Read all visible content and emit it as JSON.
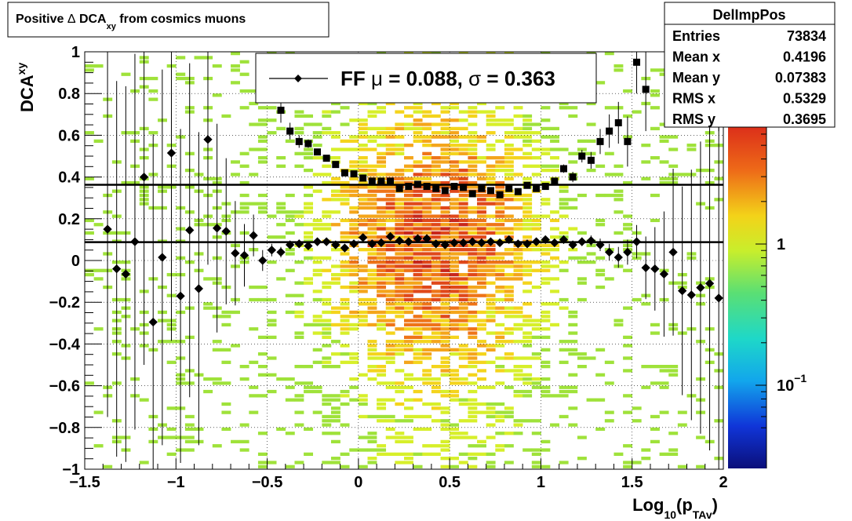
{
  "chart_data": {
    "type": "scatter",
    "title_parts": [
      "Positive ",
      "Δ",
      " DCA",
      "xy",
      " from cosmics muons"
    ],
    "xlabel_parts": [
      "Log",
      "10",
      "(p",
      "TAv",
      ")"
    ],
    "ylabel_parts": [
      "DCA",
      "xy"
    ],
    "xlim": [
      -1.5,
      2.0
    ],
    "ylim": [
      -1.0,
      1.0
    ],
    "x_ticks": [
      -1.5,
      -1,
      -0.5,
      0,
      0.5,
      1,
      1.5,
      2
    ],
    "x_tick_labels": [
      "−1.5",
      "−1",
      "−0.5",
      "0",
      "0.5",
      "1",
      "1.5",
      "2"
    ],
    "y_ticks": [
      -1,
      -0.8,
      -0.6,
      -0.4,
      -0.2,
      0,
      0.2,
      0.4,
      0.6,
      0.8,
      1
    ],
    "y_tick_labels": [
      "−1",
      "−0.8",
      "−0.6",
      "−0.4",
      "−0.2",
      "0",
      "0.2",
      "0.4",
      "0.6",
      "0.8",
      "1"
    ],
    "grid": true,
    "legend": {
      "position": "top",
      "label_prefix": "FF ",
      "mu_symbol": "μ",
      "mu_text": " =  0.088, ",
      "sigma_symbol": "σ",
      "sigma_text": " =   0.363"
    },
    "fit_lines": [
      {
        "y": 0.088
      },
      {
        "y": 0.363
      }
    ],
    "stats": {
      "title": "DelImpPos",
      "rows": [
        {
          "label": "Entries",
          "value": "73834"
        },
        {
          "label": "Mean x",
          "value": "0.4196"
        },
        {
          "label": "Mean y",
          "value": "0.07383"
        },
        {
          "label": "RMS x",
          "value": "0.5329"
        },
        {
          "label": "RMS y",
          "value": "0.3695"
        }
      ]
    },
    "colorbar": {
      "scale": "log",
      "labels": [
        {
          "base": "1",
          "exp": "",
          "value": 1
        },
        {
          "base": "10",
          "exp": "−1",
          "value": 0.1
        }
      ]
    },
    "mean_series": {
      "marker": "diamond",
      "x": [
        -1.375,
        -1.325,
        -1.275,
        -1.225,
        -1.175,
        -1.125,
        -1.075,
        -1.025,
        -0.975,
        -0.925,
        -0.875,
        -0.825,
        -0.775,
        -0.725,
        -0.675,
        -0.625,
        -0.575,
        -0.525,
        -0.475,
        -0.425,
        -0.375,
        -0.325,
        -0.275,
        -0.225,
        -0.175,
        -0.125,
        -0.075,
        -0.025,
        0.025,
        0.075,
        0.125,
        0.175,
        0.225,
        0.275,
        0.325,
        0.375,
        0.425,
        0.475,
        0.525,
        0.575,
        0.625,
        0.675,
        0.725,
        0.775,
        0.825,
        0.875,
        0.925,
        0.975,
        1.025,
        1.075,
        1.125,
        1.175,
        1.225,
        1.275,
        1.325,
        1.375,
        1.425,
        1.475,
        1.525,
        1.575,
        1.625,
        1.675,
        1.725,
        1.775,
        1.825,
        1.875,
        1.925,
        1.975
      ],
      "y": [
        0.15,
        -0.04,
        -0.065,
        0.09,
        0.4,
        -0.295,
        0.015,
        0.515,
        -0.17,
        0.145,
        -0.135,
        0.58,
        0.155,
        0.14,
        0.035,
        0.025,
        0.12,
        0.0,
        0.05,
        0.04,
        0.075,
        0.08,
        0.07,
        0.09,
        0.09,
        0.075,
        0.06,
        0.08,
        0.11,
        0.08,
        0.085,
        0.115,
        0.095,
        0.09,
        0.105,
        0.105,
        0.08,
        0.075,
        0.085,
        0.085,
        0.09,
        0.085,
        0.09,
        0.085,
        0.1,
        0.08,
        0.08,
        0.09,
        0.1,
        0.085,
        0.1,
        0.075,
        0.09,
        0.095,
        0.075,
        0.04,
        0.015,
        0.04,
        0.09,
        -0.035,
        -0.04,
        -0.065,
        0.04,
        -0.145,
        -0.165,
        -0.13,
        -0.11,
        -0.18
      ],
      "err": [
        0.9,
        0.9,
        0.9,
        0.9,
        0.9,
        0.9,
        0.9,
        0.9,
        0.8,
        0.8,
        0.75,
        0.6,
        0.5,
        0.35,
        0.25,
        0.15,
        0.1,
        0.05,
        0.03,
        0.025,
        0.02,
        0.02,
        0.015,
        0.015,
        0.015,
        0.015,
        0.015,
        0.015,
        0.015,
        0.015,
        0.015,
        0.015,
        0.015,
        0.015,
        0.015,
        0.015,
        0.015,
        0.015,
        0.015,
        0.015,
        0.015,
        0.015,
        0.015,
        0.015,
        0.015,
        0.015,
        0.015,
        0.015,
        0.015,
        0.015,
        0.02,
        0.02,
        0.02,
        0.025,
        0.03,
        0.04,
        0.05,
        0.06,
        0.08,
        0.15,
        0.2,
        0.3,
        0.4,
        0.5,
        0.6,
        0.7,
        0.8,
        0.9
      ]
    },
    "rms_series": {
      "marker": "square",
      "x": [
        -0.425,
        -0.375,
        -0.325,
        -0.275,
        -0.225,
        -0.175,
        -0.125,
        -0.075,
        -0.025,
        0.025,
        0.075,
        0.125,
        0.175,
        0.225,
        0.275,
        0.325,
        0.375,
        0.425,
        0.475,
        0.525,
        0.575,
        0.625,
        0.675,
        0.725,
        0.775,
        0.825,
        0.875,
        0.925,
        0.975,
        1.025,
        1.075,
        1.125,
        1.175,
        1.225,
        1.275,
        1.325,
        1.375,
        1.425,
        1.475,
        1.525,
        1.575,
        1.975
      ],
      "y": [
        0.72,
        0.62,
        0.57,
        0.56,
        0.52,
        0.49,
        0.46,
        0.42,
        0.415,
        0.395,
        0.38,
        0.38,
        0.38,
        0.345,
        0.355,
        0.365,
        0.355,
        0.345,
        0.335,
        0.355,
        0.35,
        0.32,
        0.345,
        0.335,
        0.315,
        0.345,
        0.33,
        0.36,
        0.345,
        0.355,
        0.38,
        0.44,
        0.4,
        0.5,
        0.48,
        0.57,
        0.62,
        0.66,
        0.57,
        0.95,
        0.82,
        0.92
      ],
      "err": [
        0.06,
        0.04,
        0.03,
        0.02,
        0.015,
        0.012,
        0.01,
        0.01,
        0.01,
        0.01,
        0.01,
        0.01,
        0.01,
        0.01,
        0.01,
        0.01,
        0.01,
        0.01,
        0.01,
        0.01,
        0.01,
        0.01,
        0.01,
        0.01,
        0.01,
        0.01,
        0.01,
        0.01,
        0.01,
        0.012,
        0.015,
        0.02,
        0.025,
        0.03,
        0.04,
        0.06,
        0.08,
        0.1,
        0.12,
        0.15,
        0.2,
        0.3
      ]
    }
  }
}
